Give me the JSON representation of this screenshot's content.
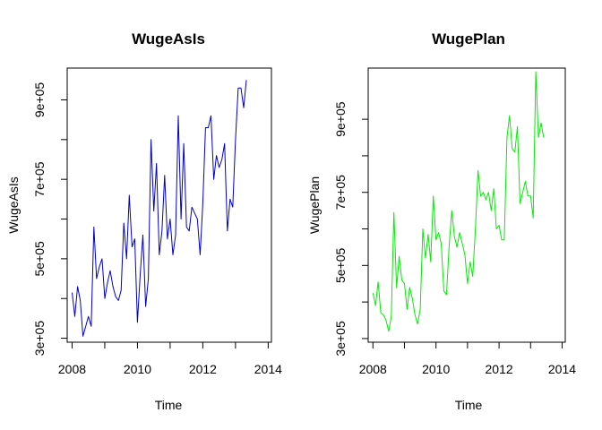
{
  "chart_data": [
    {
      "type": "line",
      "title": "WugeAsIs",
      "xlabel": "Time",
      "ylabel": "WugeAsIs",
      "color": "#0000CD",
      "start": 2008.0,
      "frequency": 12,
      "xlim": [
        2007.85,
        2014.1
      ],
      "ylim": [
        290000,
        980000
      ],
      "xticks": [
        2008,
        2010,
        2012,
        2014
      ],
      "yticks": [
        300000,
        500000,
        700000,
        900000
      ],
      "ytick_labels": [
        "3e+05",
        "5e+05",
        "7e+05",
        "9e+05"
      ],
      "grid": false,
      "values": [
        415000,
        355000,
        430000,
        395000,
        305000,
        330000,
        355000,
        330000,
        580000,
        450000,
        480000,
        500000,
        400000,
        440000,
        470000,
        430000,
        405000,
        395000,
        420000,
        590000,
        500000,
        660000,
        530000,
        550000,
        340000,
        460000,
        560000,
        380000,
        450000,
        800000,
        620000,
        740000,
        510000,
        570000,
        710000,
        550000,
        600000,
        510000,
        560000,
        860000,
        600000,
        790000,
        580000,
        570000,
        630000,
        615000,
        600000,
        510000,
        640000,
        830000,
        830000,
        860000,
        700000,
        760000,
        730000,
        750000,
        790000,
        570000,
        650000,
        630000,
        800000,
        930000,
        930000,
        880000,
        950000
      ]
    },
    {
      "type": "line",
      "title": "WugePlan",
      "xlabel": "Time",
      "ylabel": "WugePlan",
      "color": "#00EE00",
      "start": 2008.0,
      "frequency": 12,
      "xlim": [
        2007.85,
        2014.1
      ],
      "ylim": [
        290000,
        1040000
      ],
      "xticks": [
        2008,
        2010,
        2012,
        2014
      ],
      "yticks": [
        300000,
        500000,
        700000,
        900000
      ],
      "ytick_labels": [
        "3e+05",
        "5e+05",
        "7e+05",
        "9e+05"
      ],
      "grid": false,
      "values": [
        425000,
        390000,
        455000,
        370000,
        365000,
        350000,
        320000,
        360000,
        645000,
        440000,
        525000,
        460000,
        450000,
        380000,
        440000,
        410000,
        365000,
        340000,
        380000,
        600000,
        520000,
        585000,
        510000,
        690000,
        570000,
        590000,
        560000,
        430000,
        420000,
        550000,
        650000,
        580000,
        550000,
        590000,
        560000,
        530000,
        450000,
        510000,
        470000,
        600000,
        760000,
        690000,
        700000,
        680000,
        700000,
        650000,
        710000,
        600000,
        610000,
        570000,
        570000,
        850000,
        910000,
        820000,
        810000,
        880000,
        670000,
        700000,
        730000,
        690000,
        690000,
        630000,
        1030000,
        850000,
        890000,
        850000
      ]
    }
  ]
}
